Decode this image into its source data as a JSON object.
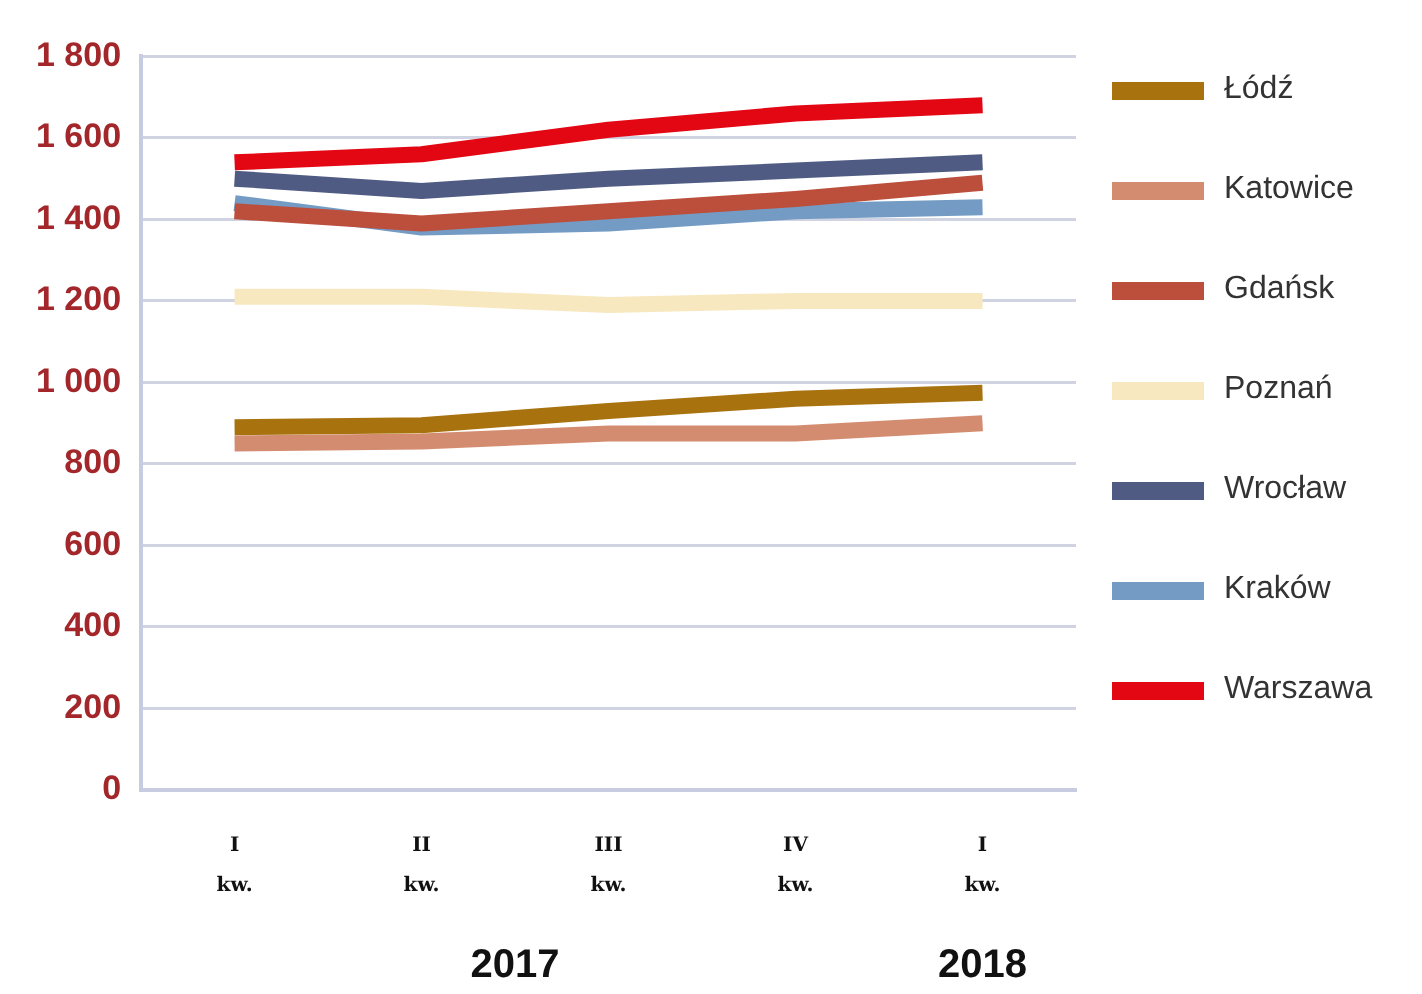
{
  "chart_data": {
    "type": "line",
    "categories": [
      "I kw.",
      "II kw.",
      "III kw.",
      "IV kw.",
      "I kw."
    ],
    "series": [
      {
        "name": "Łódź",
        "color": "#a8720f",
        "values": [
          890,
          895,
          930,
          960,
          975
        ]
      },
      {
        "name": "Katowice",
        "color": "#d48c70",
        "values": [
          850,
          855,
          875,
          875,
          900
        ]
      },
      {
        "name": "Gdańsk",
        "color": "#bc4e3c",
        "values": [
          1420,
          1390,
          1420,
          1450,
          1490
        ]
      },
      {
        "name": "Poznań",
        "color": "#f8e8c0",
        "values": [
          1210,
          1210,
          1190,
          1200,
          1200
        ]
      },
      {
        "name": "Wrocław",
        "color": "#4f5b82",
        "values": [
          1500,
          1470,
          1500,
          1520,
          1540
        ]
      },
      {
        "name": "Kraków",
        "color": "#739bc4",
        "values": [
          1440,
          1380,
          1390,
          1420,
          1430
        ]
      },
      {
        "name": "Warszawa",
        "color": "#e30613",
        "values": [
          1540,
          1560,
          1620,
          1660,
          1680
        ]
      }
    ],
    "ylim": [
      0,
      1800
    ],
    "yticks": [
      {
        "value": 0,
        "label": "0"
      },
      {
        "value": 200,
        "label": "200"
      },
      {
        "value": 400,
        "label": "400"
      },
      {
        "value": 600,
        "label": "600"
      },
      {
        "value": 800,
        "label": "800"
      },
      {
        "value": 1000,
        "label": "1 000"
      },
      {
        "value": 1200,
        "label": "1 200"
      },
      {
        "value": 1400,
        "label": "1 400"
      },
      {
        "value": 1600,
        "label": "1 600"
      },
      {
        "value": 1800,
        "label": "1 800"
      }
    ],
    "grid": "y",
    "legend": "right",
    "marker": "none",
    "line_style": "solid",
    "annotations": [
      "2017",
      "2018"
    ]
  }
}
